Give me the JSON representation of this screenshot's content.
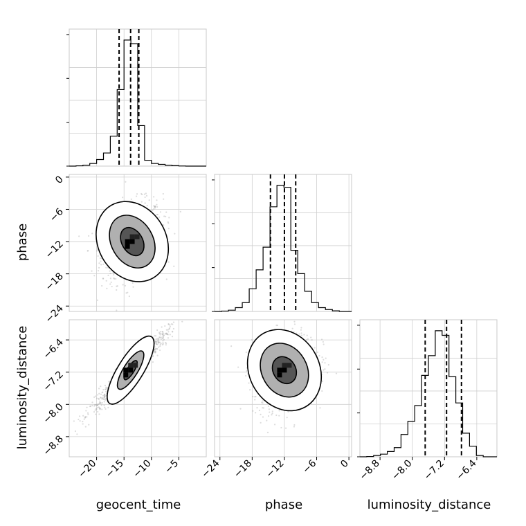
{
  "chart_data": {
    "type": "corner",
    "parameters": [
      "geocent_time",
      "phase",
      "luminosity_distance"
    ],
    "axis_labels": {
      "geocent_time": "geocent_time",
      "phase": "phase",
      "luminosity_distance": "luminosity_distance"
    },
    "ranges": {
      "geocent_time": [
        -25,
        0
      ],
      "phase": [
        -25,
        0.5
      ],
      "luminosity_distance": [
        -9.3,
        -5.9
      ]
    },
    "ticks": {
      "geocent_time": [
        -20,
        -15,
        -10,
        -5
      ],
      "phase": [
        -24,
        -18,
        -12,
        -6,
        0
      ],
      "luminosity_distance": [
        -8.8,
        -8.0,
        -7.2,
        -6.4
      ]
    },
    "tick_labels": {
      "geocent_time": [
        "−20",
        "−15",
        "−10",
        "−5"
      ],
      "phase": [
        "−24",
        "−18",
        "−12",
        "−6",
        "0"
      ],
      "luminosity_distance": [
        "−8.8",
        "−8.0",
        "−7.2",
        "−6.4"
      ]
    },
    "histograms": {
      "geocent_time": {
        "bin_edges": [
          -25,
          -23.75,
          -22.5,
          -21.25,
          -20,
          -18.75,
          -17.5,
          -16.25,
          -15,
          -13.75,
          -12.5,
          -11.25,
          -10,
          -8.75,
          -7.5,
          -6.25,
          -5,
          -3.75,
          -2.5,
          -1.25,
          0
        ],
        "counts": [
          0,
          2,
          6,
          18,
          45,
          90,
          205,
          525,
          865,
          840,
          278,
          40,
          18,
          12,
          6,
          3,
          1,
          0,
          0,
          0
        ],
        "quantiles": [
          -15.9,
          -13.8,
          -12.3
        ]
      },
      "phase": {
        "bin_edges": [
          -25,
          -23.71,
          -22.42,
          -21.13,
          -19.84,
          -18.55,
          -17.26,
          -15.97,
          -14.68,
          -13.39,
          -12.1,
          -10.81,
          -9.52,
          -8.23,
          -6.94,
          -5.65,
          -4.36,
          -3.07,
          -1.78,
          -0.49,
          0.5
        ],
        "counts": [
          0,
          3,
          10,
          30,
          70,
          180,
          330,
          510,
          830,
          1000,
          985,
          485,
          300,
          160,
          70,
          30,
          15,
          5,
          0,
          0
        ],
        "quantiles": [
          -14.6,
          -12.0,
          -9.9
        ]
      },
      "luminosity_distance": {
        "bin_edges": [
          -9.3,
          -9.13,
          -8.96,
          -8.79,
          -8.62,
          -8.45,
          -8.28,
          -8.11,
          -7.94,
          -7.77,
          -7.6,
          -7.43,
          -7.26,
          -7.09,
          -6.92,
          -6.75,
          -6.58,
          -6.41,
          -6.24,
          -6.07,
          -5.9
        ],
        "counts": [
          0,
          2,
          10,
          20,
          40,
          70,
          170,
          270,
          390,
          620,
          770,
          960,
          925,
          610,
          410,
          180,
          80,
          10,
          0,
          0
        ],
        "quantiles": [
          -7.68,
          -7.15,
          -6.78
        ]
      }
    },
    "scatter_2d": [
      {
        "x": "geocent_time",
        "y": "phase",
        "center": [
          -13.5,
          -12.0
        ],
        "contour_levels": [
          {
            "level": 0.39,
            "x_half_width": 1.9,
            "y_half_height": 2.8
          },
          {
            "level": 0.86,
            "x_half_width": 3.8,
            "y_half_height": 5.2
          },
          {
            "level": 0.99,
            "x_half_width": 6.2,
            "y_half_height": 7.8
          }
        ]
      },
      {
        "x": "geocent_time",
        "y": "luminosity_distance",
        "center": [
          -13.8,
          -7.15
        ],
        "contour_levels": [
          {
            "level": 0.39,
            "major": "diagonal",
            "length": 0.55
          },
          {
            "level": 0.86,
            "major": "diagonal",
            "length": 1.1
          },
          {
            "level": 0.99,
            "major": "diagonal",
            "length": 1.95
          }
        ]
      },
      {
        "x": "phase",
        "y": "luminosity_distance",
        "center": [
          -12.0,
          -7.15
        ],
        "contour_levels": [
          {
            "level": 0.39,
            "x_half_width": 2.1,
            "y_half_height": 0.35
          },
          {
            "level": 0.86,
            "x_half_width": 4.2,
            "y_half_height": 0.7
          },
          {
            "level": 0.99,
            "x_half_width": 6.5,
            "y_half_height": 1.05
          }
        ]
      }
    ],
    "grid": true
  }
}
